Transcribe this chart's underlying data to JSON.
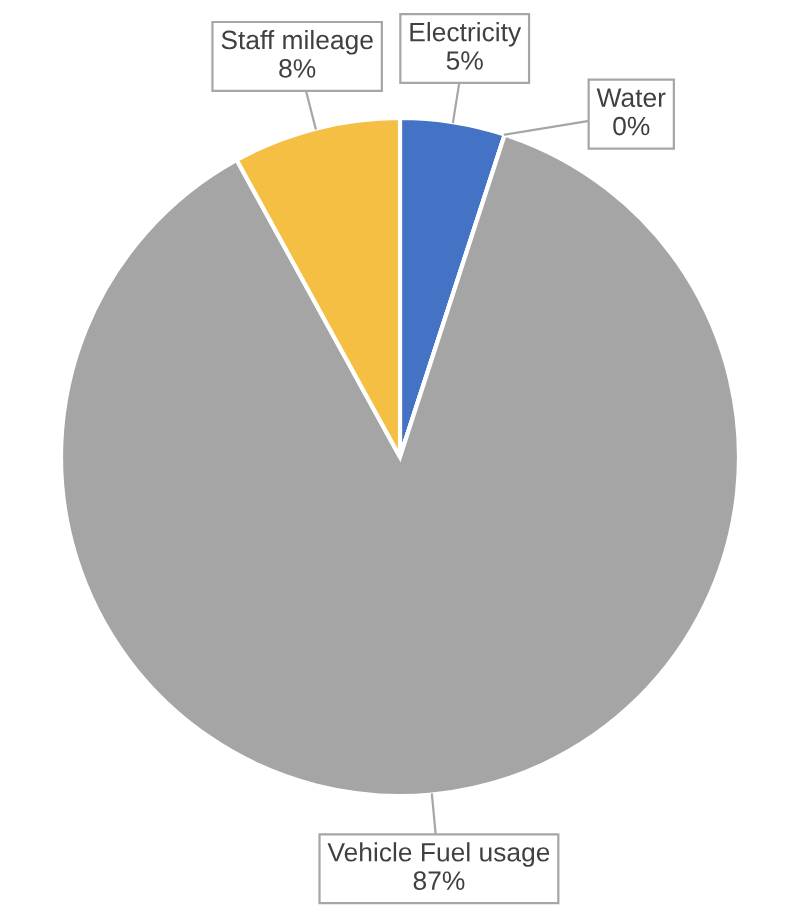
{
  "chart_data": {
    "type": "pie",
    "categories": [
      "Electricity",
      "Water",
      "Vehicle Fuel usage",
      "Staff mileage"
    ],
    "values": [
      5,
      0,
      87,
      8
    ],
    "colors": [
      "#4472c4",
      "#ed7d31",
      "#a5a5a5",
      "#f4bf42"
    ],
    "value_labels": [
      "5%",
      "0%",
      "87%",
      "8%"
    ],
    "legend": false
  }
}
